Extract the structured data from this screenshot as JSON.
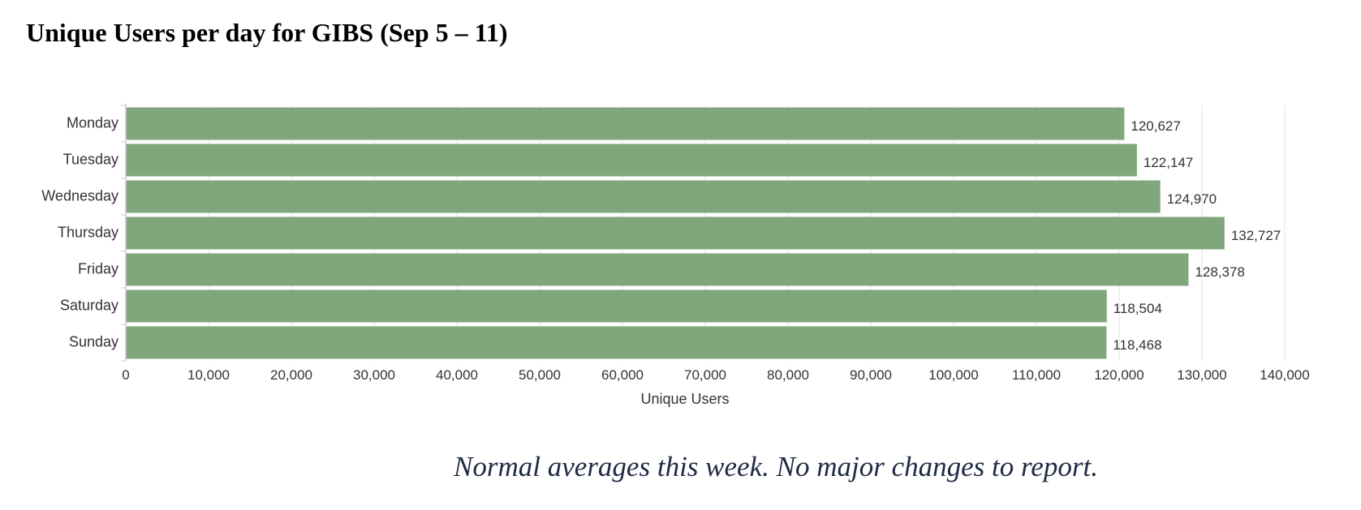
{
  "page": {
    "title": "Unique Users per day for GIBS (Sep 5 – 11)",
    "caption": "Normal averages this week.  No major changes to report."
  },
  "chart_data": {
    "type": "bar",
    "orientation": "horizontal",
    "title": "Unique Users per day for GIBS (Sep 5 – 11)",
    "xlabel": "Unique Users",
    "ylabel": "",
    "categories": [
      "Monday",
      "Tuesday",
      "Wednesday",
      "Thursday",
      "Friday",
      "Saturday",
      "Sunday"
    ],
    "values": [
      120627,
      122147,
      124970,
      132727,
      128378,
      118504,
      118468
    ],
    "data_labels": [
      "120,627",
      "122,147",
      "124,970",
      "132,727",
      "128,378",
      "118,504",
      "118,468"
    ],
    "xlim": [
      0,
      140000
    ],
    "xticks": [
      0,
      10000,
      20000,
      30000,
      40000,
      50000,
      60000,
      70000,
      80000,
      90000,
      100000,
      110000,
      120000,
      130000,
      140000
    ],
    "xtick_labels": [
      "0",
      "10,000",
      "20,000",
      "30,000",
      "40,000",
      "50,000",
      "60,000",
      "70,000",
      "80,000",
      "90,000",
      "100,000",
      "110,000",
      "120,000",
      "130,000",
      "140,000"
    ],
    "grid": true,
    "legend": "none",
    "bar_color": "#7fa77b"
  }
}
